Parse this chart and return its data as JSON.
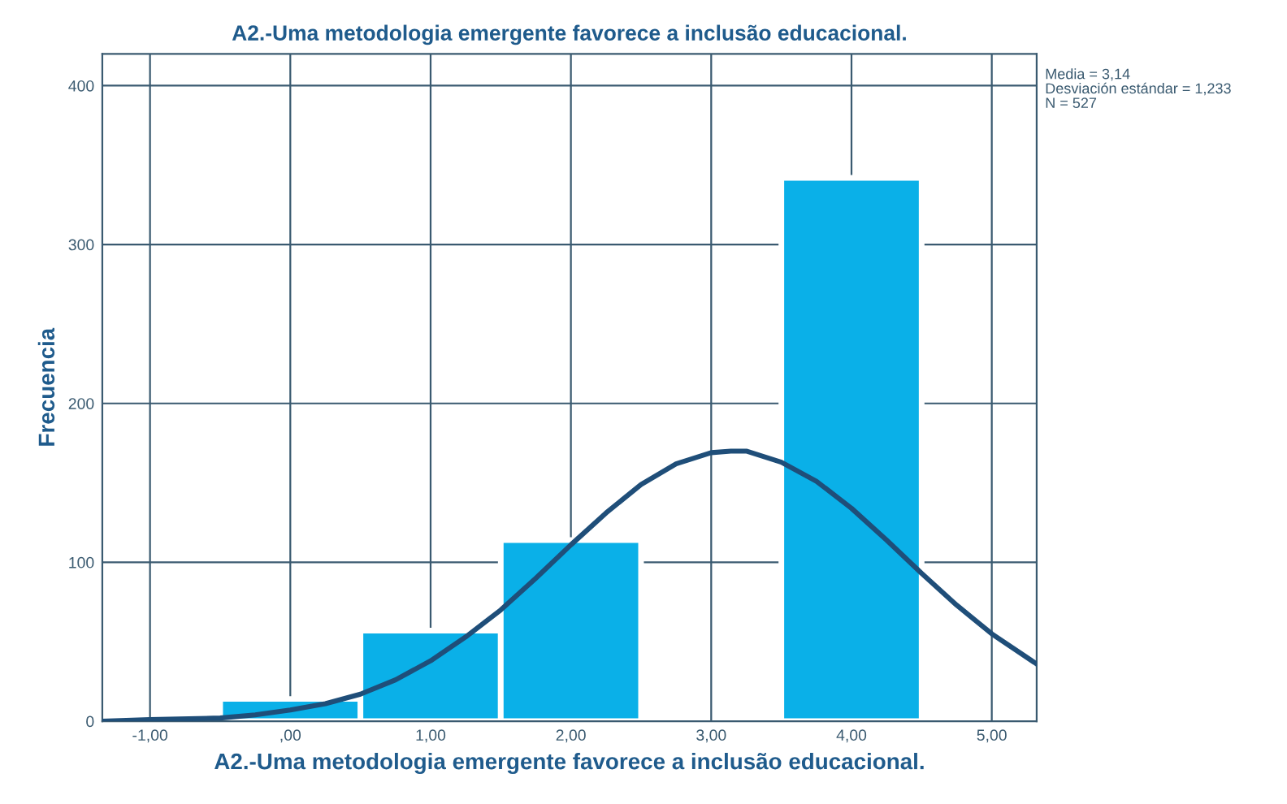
{
  "chart_data": {
    "type": "histogram",
    "title": "A2.-Uma metodologia emergente favorece a inclusão educacional.",
    "xlabel": "A2.-Uma metodologia emergente favorece a inclusão educacional.",
    "ylabel": "Frecuencia",
    "bins": [
      -0.5,
      0.5,
      1.5,
      2.5,
      3.5,
      4.5
    ],
    "values": [
      14,
      57,
      114,
      0,
      342
    ],
    "color": "#0ab0e8",
    "series": [
      {
        "type": "line",
        "color": "#1f4e79",
        "x": [
          -1.34,
          -1.0,
          -0.5,
          -0.25,
          0,
          0.25,
          0.5,
          0.75,
          1.0,
          1.25,
          1.5,
          1.75,
          2.0,
          2.25,
          2.5,
          2.75,
          3.0,
          3.14,
          3.25,
          3.5,
          3.75,
          4.0,
          4.25,
          4.5,
          4.75,
          5.0,
          5.32
        ],
        "values": [
          0,
          1,
          2,
          4,
          7,
          11,
          17,
          26,
          38,
          53,
          70,
          90,
          111,
          131,
          149,
          162,
          169,
          170,
          170,
          163,
          151,
          134,
          114,
          93,
          73,
          55,
          36
        ]
      }
    ],
    "xlim": [
      -1.34,
      5.32
    ],
    "ylim": [
      0,
      420
    ],
    "xticks": [
      {
        "value": -1,
        "label": "-1,00"
      },
      {
        "value": 0,
        "label": ",00"
      },
      {
        "value": 1,
        "label": "1,00"
      },
      {
        "value": 2,
        "label": "2,00"
      },
      {
        "value": 3,
        "label": "3,00"
      },
      {
        "value": 4,
        "label": "4,00"
      },
      {
        "value": 5,
        "label": "5,00"
      }
    ],
    "yticks": [
      0,
      100,
      200,
      300,
      400
    ],
    "grid": true,
    "marker": "none",
    "line_style": "solid",
    "annotations": [
      "Media = 3,14",
      "Desviación estándar = 1,233",
      "N = 527"
    ]
  }
}
